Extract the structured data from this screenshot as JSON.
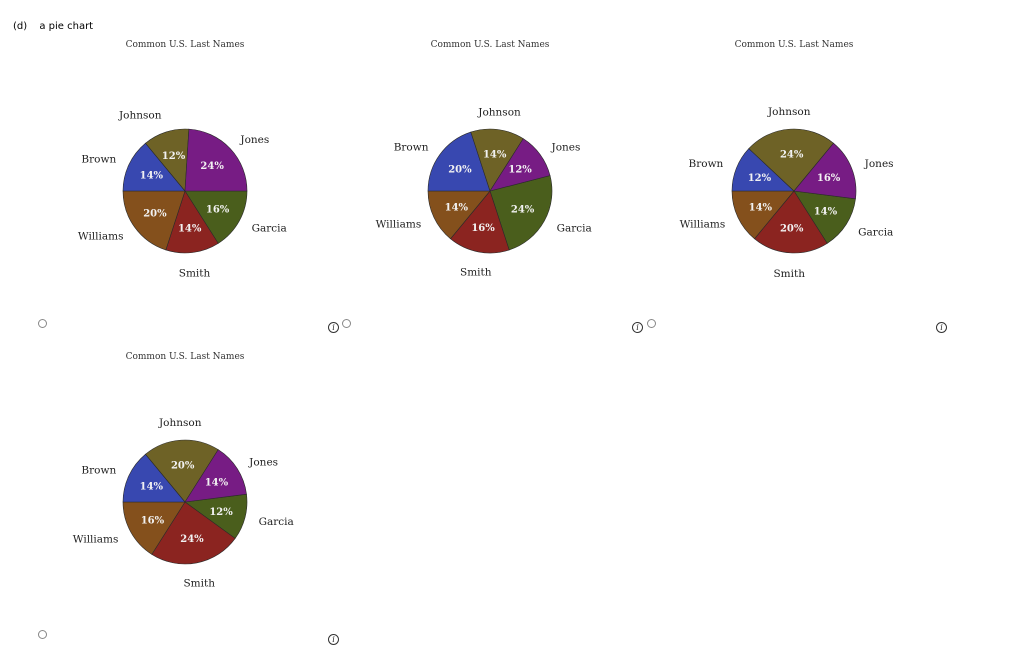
{
  "question": {
    "tag": "(d)",
    "text": "a pie chart"
  },
  "info_icon_glyph": "i",
  "colors": {
    "Garcia": "#4a5e1c",
    "Smith": "#8b2420",
    "Williams": "#84501c",
    "Brown": "#3848b0",
    "Johnson": "#6e6226",
    "Jones": "#771c84"
  },
  "chart_data": [
    {
      "type": "pie",
      "title": "Common U.S. Last Names",
      "categories": [
        "Garcia",
        "Smith",
        "Williams",
        "Brown",
        "Johnson",
        "Jones"
      ],
      "values": [
        16,
        14,
        20,
        14,
        12,
        24
      ],
      "labels": [
        "16%",
        "14%",
        "20%",
        "14%",
        "12%",
        "24%"
      ]
    },
    {
      "type": "pie",
      "title": "Common U.S. Last Names",
      "categories": [
        "Garcia",
        "Smith",
        "Williams",
        "Brown",
        "Johnson",
        "Jones"
      ],
      "values": [
        24,
        16,
        14,
        20,
        14,
        12
      ],
      "labels": [
        "24%",
        "16%",
        "14%",
        "20%",
        "14%",
        "12%"
      ]
    },
    {
      "type": "pie",
      "title": "Common U.S. Last Names",
      "categories": [
        "Garcia",
        "Smith",
        "Williams",
        "Brown",
        "Johnson",
        "Jones"
      ],
      "values": [
        14,
        20,
        14,
        12,
        24,
        16
      ],
      "labels": [
        "14%",
        "20%",
        "14%",
        "12%",
        "24%",
        "16%"
      ]
    },
    {
      "type": "pie",
      "title": "Common U.S. Last Names",
      "categories": [
        "Garcia",
        "Smith",
        "Williams",
        "Brown",
        "Johnson",
        "Jones"
      ],
      "values": [
        12,
        24,
        16,
        14,
        20,
        14
      ],
      "labels": [
        "12%",
        "24%",
        "16%",
        "14%",
        "20%",
        "14%"
      ]
    }
  ]
}
